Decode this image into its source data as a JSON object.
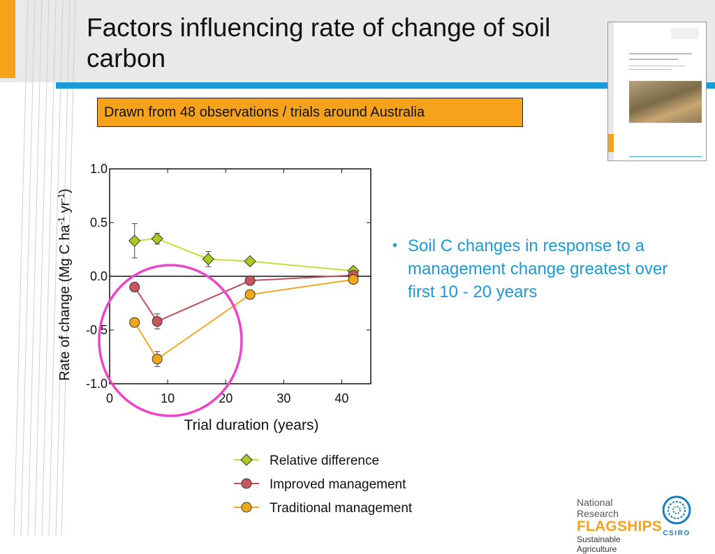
{
  "slide": {
    "title": "Factors influencing rate of change of soil carbon",
    "callout": "Drawn from 48 observations / trials around Australia",
    "bullet": "Soil C changes in response to a management change greatest over first 10 - 20 years"
  },
  "branding": {
    "line1": "National Research",
    "line2": "FLAGSHIPS",
    "line3": "Sustainable Agriculture",
    "org": "CSIRO"
  },
  "colors": {
    "accent_orange": "#f7a21b",
    "accent_blue": "#1a9ad6",
    "highlight_circle": "#ee44c8"
  },
  "chart_data": {
    "type": "line",
    "xlabel": "Trial duration (years)",
    "ylabel": "Rate of change (Mg C ha-1 yr-1)",
    "xlim": [
      0,
      45
    ],
    "ylim": [
      -1.0,
      1.0
    ],
    "xticks": [
      0,
      10,
      20,
      30,
      40
    ],
    "yticks": [
      -1.0,
      -0.5,
      0.0,
      0.5,
      1.0
    ],
    "ytick_labels": [
      "-1.0",
      "-0.5",
      "0.0",
      "0.5",
      "1.0"
    ],
    "zero_line": true,
    "legend_position": "bottom",
    "annotation": "circle highlighting first 10 - 20 years",
    "series": [
      {
        "name": "Relative difference",
        "marker": "diamond",
        "color": "#aacc22",
        "line_color": "#c6dd3a",
        "points": [
          {
            "x": 4.3,
            "y": 0.33,
            "err": 0.16
          },
          {
            "x": 8.2,
            "y": 0.35,
            "err": 0.05
          },
          {
            "x": 17,
            "y": 0.16,
            "err": 0.07
          },
          {
            "x": 24.2,
            "y": 0.14
          },
          {
            "x": 42,
            "y": 0.05
          }
        ]
      },
      {
        "name": "Improved management",
        "marker": "circle",
        "color": "#c85660",
        "line_color": "#c05058",
        "points": [
          {
            "x": 4.3,
            "y": -0.1
          },
          {
            "x": 8.2,
            "y": -0.42,
            "err": 0.07
          },
          {
            "x": 24.2,
            "y": -0.04
          },
          {
            "x": 42,
            "y": 0.01
          }
        ]
      },
      {
        "name": "Traditional management",
        "marker": "circle",
        "color": "#f0a818",
        "line_color": "#f2a822",
        "points": [
          {
            "x": 4.3,
            "y": -0.43
          },
          {
            "x": 8.2,
            "y": -0.77,
            "err": 0.07
          },
          {
            "x": 24.2,
            "y": -0.17
          },
          {
            "x": 42,
            "y": -0.03
          }
        ]
      }
    ]
  }
}
